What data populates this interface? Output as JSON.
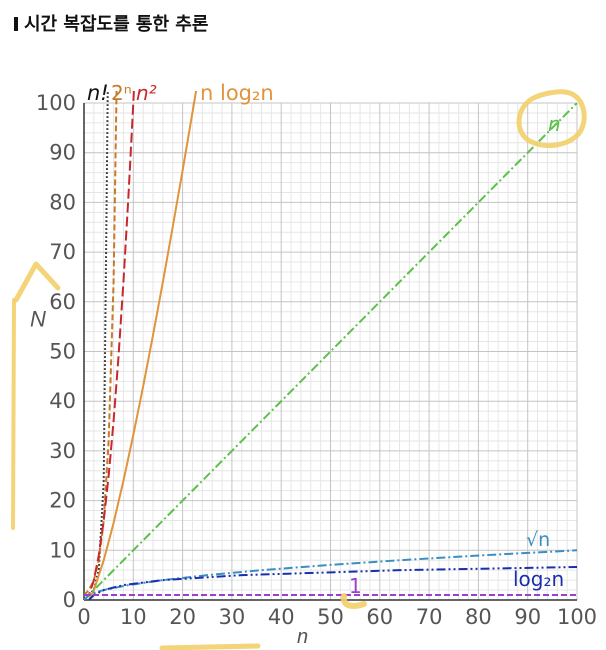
{
  "heading": {
    "title": "시간 복잡도를 통한 추론"
  },
  "chart_data": {
    "type": "line",
    "xlabel": "n",
    "ylabel": "N",
    "xlim": [
      0,
      100
    ],
    "ylim": [
      0,
      100
    ],
    "x_ticks": [
      0,
      10,
      20,
      30,
      40,
      50,
      60,
      70,
      80,
      90,
      100
    ],
    "y_ticks": [
      0,
      10,
      20,
      30,
      40,
      50,
      60,
      70,
      80,
      90,
      100
    ],
    "grid": true,
    "series": [
      {
        "name": "n!",
        "color": "#111111",
        "dash": "dotted",
        "x": [
          1,
          2,
          3,
          4,
          5
        ],
        "y": [
          1,
          2,
          6,
          24,
          120
        ]
      },
      {
        "name": "2ⁿ",
        "color": "#c87a2a",
        "dash": "dashed",
        "x": [
          0,
          1,
          2,
          3,
          4,
          5,
          6,
          7
        ],
        "y": [
          1,
          2,
          4,
          8,
          16,
          32,
          64,
          128
        ]
      },
      {
        "name": "n²",
        "color": "#c8282d",
        "dash": "longdash",
        "x": [
          0,
          1,
          2,
          3,
          4,
          5,
          6,
          7,
          8,
          9,
          10,
          11
        ],
        "y": [
          0,
          1,
          4,
          9,
          16,
          25,
          36,
          49,
          64,
          81,
          100,
          121
        ]
      },
      {
        "name": "n log₂n",
        "color": "#e0943c",
        "dash": "solid",
        "x": [
          1,
          2,
          4,
          6,
          8,
          10,
          12,
          14,
          16,
          18,
          20,
          22,
          23
        ],
        "y": [
          0,
          2,
          8,
          15.5,
          24,
          33.2,
          43,
          53.3,
          64,
          75.1,
          86.4,
          98.1,
          104
        ]
      },
      {
        "name": "n",
        "color": "#5cc04a",
        "dash": "dashdot",
        "x": [
          0,
          100
        ],
        "y": [
          0,
          100
        ]
      },
      {
        "name": "√n",
        "color": "#3a8fc0",
        "dash": "dashdot",
        "x": [
          0,
          1,
          2,
          4,
          9,
          16,
          25,
          36,
          49,
          64,
          81,
          100
        ],
        "y": [
          0,
          1,
          1.41,
          2,
          3,
          4,
          5,
          6,
          7,
          8,
          9,
          10
        ]
      },
      {
        "name": "log₂n",
        "color": "#1a2fae",
        "dash": "dashdotdot",
        "x": [
          1,
          2,
          4,
          8,
          16,
          32,
          64,
          100
        ],
        "y": [
          0,
          1,
          2,
          3,
          4,
          5,
          6,
          6.64
        ]
      },
      {
        "name": "1",
        "color": "#9a3fd0",
        "dash": "dashed",
        "x": [
          0,
          100
        ],
        "y": [
          1,
          1
        ]
      }
    ]
  }
}
